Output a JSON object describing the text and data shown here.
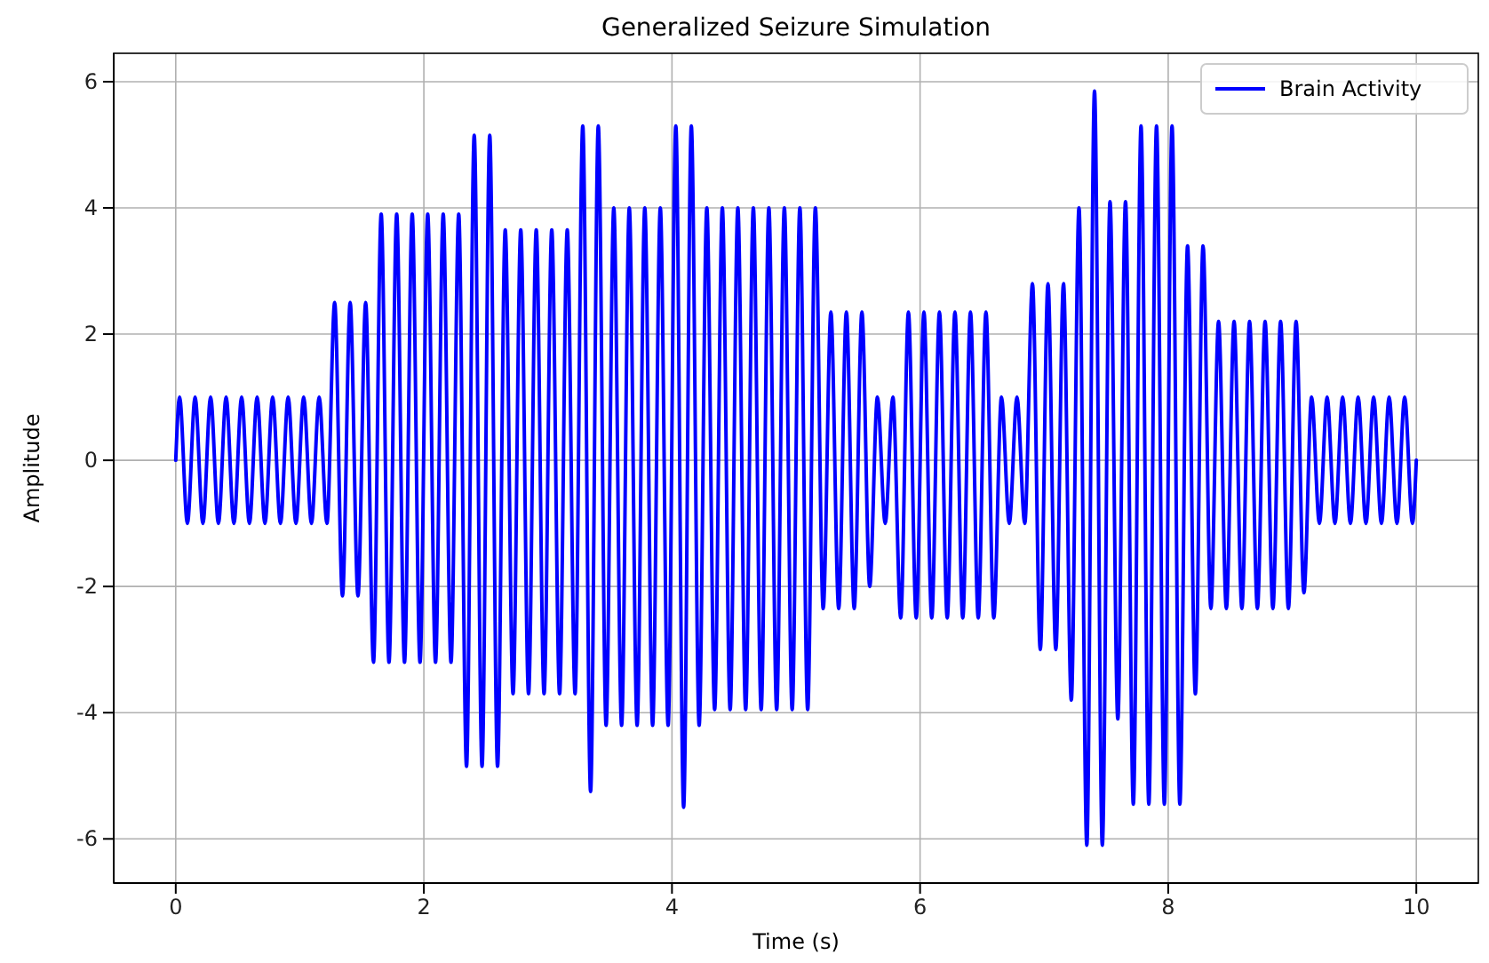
{
  "chart_data": {
    "type": "line",
    "title": "Generalized Seizure Simulation",
    "xlabel": "Time (s)",
    "ylabel": "Amplitude",
    "x": [
      0,
      0.031,
      0.094,
      0.156,
      0.219,
      0.281,
      0.344,
      0.406,
      0.469,
      0.531,
      0.594,
      0.656,
      0.719,
      0.781,
      0.844,
      0.906,
      0.969,
      1.031,
      1.094,
      1.156,
      1.219,
      1.281,
      1.344,
      1.406,
      1.469,
      1.531,
      1.594,
      1.656,
      1.719,
      1.781,
      1.844,
      1.906,
      1.969,
      2.031,
      2.094,
      2.156,
      2.219,
      2.281,
      2.344,
      2.406,
      2.469,
      2.531,
      2.594,
      2.656,
      2.719,
      2.781,
      2.844,
      2.906,
      2.969,
      3.031,
      3.094,
      3.156,
      3.219,
      3.281,
      3.344,
      3.406,
      3.469,
      3.531,
      3.594,
      3.656,
      3.719,
      3.781,
      3.844,
      3.906,
      3.969,
      4.031,
      4.094,
      4.156,
      4.219,
      4.281,
      4.344,
      4.406,
      4.469,
      4.531,
      4.594,
      4.656,
      4.719,
      4.781,
      4.844,
      4.906,
      4.969,
      5.031,
      5.094,
      5.156,
      5.219,
      5.281,
      5.344,
      5.406,
      5.469,
      5.531,
      5.594,
      5.656,
      5.719,
      5.781,
      5.844,
      5.906,
      5.969,
      6.031,
      6.094,
      6.156,
      6.219,
      6.281,
      6.344,
      6.406,
      6.469,
      6.531,
      6.594,
      6.656,
      6.719,
      6.781,
      6.844,
      6.906,
      6.969,
      7.031,
      7.094,
      7.156,
      7.219,
      7.281,
      7.344,
      7.406,
      7.469,
      7.531,
      7.594,
      7.656,
      7.719,
      7.781,
      7.844,
      7.906,
      7.969,
      8.031,
      8.094,
      8.156,
      8.219,
      8.281,
      8.344,
      8.406,
      8.469,
      8.531,
      8.594,
      8.656,
      8.719,
      8.781,
      8.844,
      8.906,
      8.969,
      9.031,
      9.094,
      9.156,
      9.219,
      9.281,
      9.344,
      9.406,
      9.469,
      9.531,
      9.594,
      9.656,
      9.719,
      9.781,
      9.844,
      9.906,
      9.969,
      10
    ],
    "series": [
      {
        "name": "Brain Activity",
        "color": "#0000ff",
        "values": [
          0,
          1,
          -1,
          1,
          -1,
          1,
          -1,
          1,
          -1,
          1,
          -1,
          1,
          -1,
          1,
          -1,
          1,
          -1,
          1,
          -1,
          1,
          -1,
          2.5,
          -2.15,
          2.5,
          -2.15,
          2.5,
          -3.2,
          3.9,
          -3.2,
          3.9,
          -3.2,
          3.9,
          -3.2,
          3.9,
          -3.2,
          3.9,
          -3.2,
          3.9,
          -4.85,
          5.15,
          -4.85,
          5.15,
          -4.85,
          3.65,
          -3.7,
          3.65,
          -3.7,
          3.65,
          -3.7,
          3.65,
          -3.7,
          3.65,
          -3.7,
          5.3,
          -5.25,
          5.3,
          -4.2,
          4,
          -4.2,
          4,
          -4.2,
          4,
          -4.2,
          4,
          -4.2,
          5.3,
          -5.5,
          5.3,
          -4.2,
          4,
          -3.95,
          4,
          -3.95,
          4,
          -3.95,
          4,
          -3.95,
          4,
          -3.95,
          4,
          -3.95,
          4,
          -3.95,
          4,
          -2.35,
          2.35,
          -2.35,
          2.35,
          -2.35,
          2.35,
          -2,
          1,
          -1,
          1,
          -2.5,
          2.35,
          -2.5,
          2.35,
          -2.5,
          2.35,
          -2.5,
          2.35,
          -2.5,
          2.35,
          -2.5,
          2.35,
          -2.5,
          1,
          -1,
          1,
          -1,
          2.8,
          -3,
          2.8,
          -3,
          2.8,
          -3.8,
          4,
          -6.1,
          5.85,
          -6.1,
          4.1,
          -4.1,
          4.1,
          -5.45,
          5.3,
          -5.45,
          5.3,
          -5.45,
          5.3,
          -5.45,
          3.4,
          -3.7,
          3.4,
          -2.35,
          2.2,
          -2.35,
          2.2,
          -2.35,
          2.2,
          -2.35,
          2.2,
          -2.35,
          2.2,
          -2.35,
          2.2,
          -2.1,
          1,
          -1,
          1,
          -1,
          1,
          -1,
          1,
          -1,
          1,
          -1,
          1,
          -1,
          1,
          -1,
          0
        ]
      }
    ],
    "xlim": [
      -0.5,
      10.5
    ],
    "ylim": [
      -6.7,
      6.45
    ],
    "xticks": [
      0,
      2,
      4,
      6,
      8,
      10
    ],
    "yticks": [
      -6,
      -4,
      -2,
      0,
      2,
      4,
      6
    ],
    "grid": true,
    "legend": "top right",
    "line_style": "solid",
    "marker": "none"
  }
}
